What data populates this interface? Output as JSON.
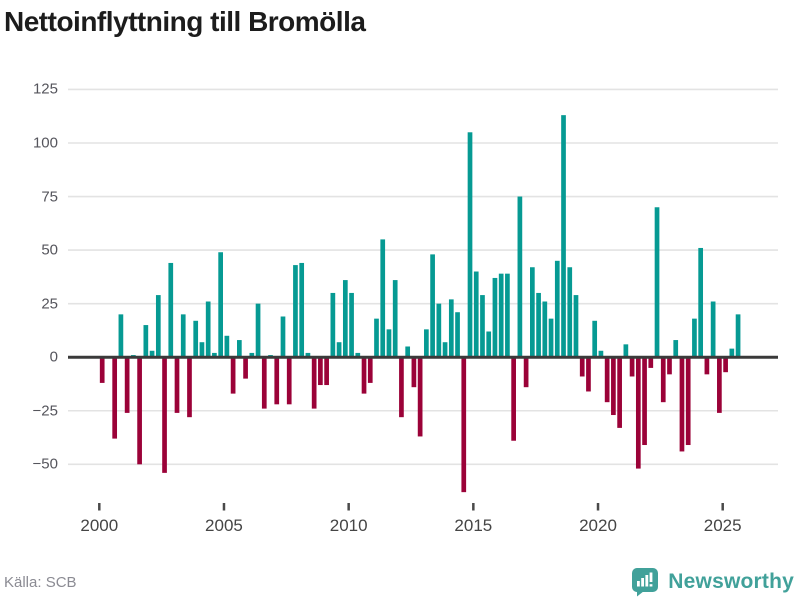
{
  "header": {
    "title": "Nettoinflyttning till Bromölla"
  },
  "footer": {
    "source_label": "Källa: SCB",
    "brand": "Newsworthy",
    "brand_icon": "bar-chart-speech-bubble"
  },
  "colors": {
    "positive_bar": "#069a93",
    "negative_bar": "#9b0238",
    "gridline": "#e3e3e3",
    "zero_line": "#3a3a3a",
    "title_text": "#1c1c1c",
    "axis_text": "#55555c",
    "source_text": "#8b8b93",
    "logo_teal": "#41a19a"
  },
  "chart_data": {
    "type": "bar",
    "title": "Nettoinflyttning till Bromölla",
    "frequency": "quarterly",
    "start_period": "2000-Q1",
    "end_period": "2025-Q3",
    "values": [
      -12,
      0,
      -38,
      20,
      -26,
      1,
      -50,
      15,
      3,
      29,
      -54,
      44,
      -26,
      20,
      -28,
      17,
      7,
      26,
      2,
      49,
      10,
      -17,
      8,
      -10,
      2,
      25,
      -24,
      1,
      -22,
      19,
      -22,
      43,
      44,
      2,
      -24,
      -13,
      -13,
      30,
      7,
      36,
      30,
      2,
      -17,
      -12,
      18,
      55,
      13,
      36,
      -28,
      5,
      -14,
      -37,
      13,
      48,
      25,
      7,
      27,
      21,
      -63,
      105,
      40,
      29,
      12,
      37,
      39,
      39,
      -39,
      75,
      -14,
      42,
      30,
      26,
      18,
      45,
      113,
      42,
      29,
      -9,
      -16,
      17,
      3,
      -21,
      -27,
      -33,
      6,
      -9,
      -52,
      -41,
      -5,
      70,
      -21,
      -8,
      8,
      -44,
      -41,
      18,
      51,
      -8,
      26,
      -26,
      -7,
      4,
      20
    ],
    "y_ticks": [
      125,
      100,
      75,
      50,
      25,
      0,
      -25,
      -50
    ],
    "x_ticks": [
      "2000",
      "2005",
      "2010",
      "2015",
      "2020",
      "2025"
    ],
    "ylim": [
      -72,
      129
    ],
    "xlabel": "",
    "ylabel": "",
    "grid": true,
    "legend": false,
    "source": "SCB"
  }
}
